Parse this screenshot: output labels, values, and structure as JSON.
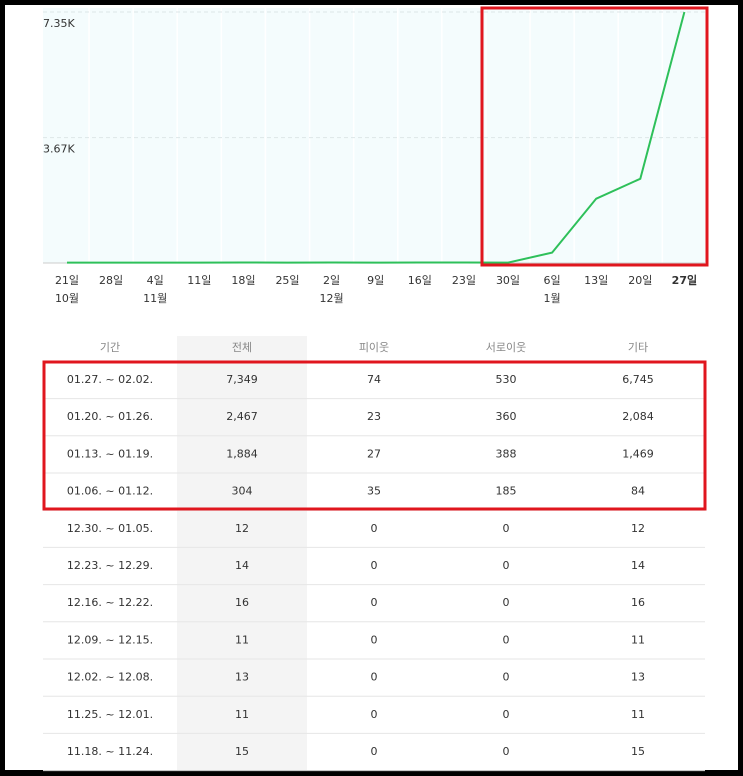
{
  "chart_data": {
    "type": "line",
    "categories": [
      "21일",
      "28일",
      "4일",
      "11일",
      "18일",
      "25일",
      "2일",
      "9일",
      "16일",
      "23일",
      "30일",
      "6일",
      "13일",
      "20일",
      "27일"
    ],
    "months": [
      "10월",
      null,
      "11월",
      null,
      null,
      null,
      "12월",
      null,
      null,
      null,
      null,
      "1월",
      null,
      null,
      null
    ],
    "series": [
      {
        "color": "#2ec05a",
        "values": [
          12,
          12,
          12,
          12,
          15,
          11,
          13,
          11,
          16,
          14,
          12,
          304,
          1884,
          2467,
          7349
        ]
      }
    ],
    "ylim": [
      0,
      7350
    ],
    "yticks": [
      {
        "value": 3670,
        "label": "3.67K"
      },
      {
        "value": 7350,
        "label": "7.35K"
      }
    ],
    "grid": true
  },
  "table": {
    "header": [
      "기간",
      "전체",
      "피이웃",
      "서로이웃",
      "기타"
    ],
    "rows": [
      [
        "01.27. ~ 02.02.",
        "7,349",
        "74",
        "530",
        "6,745"
      ],
      [
        "01.20. ~ 01.26.",
        "2,467",
        "23",
        "360",
        "2,084"
      ],
      [
        "01.13. ~ 01.19.",
        "1,884",
        "27",
        "388",
        "1,469"
      ],
      [
        "01.06. ~ 01.12.",
        "304",
        "35",
        "185",
        "84"
      ],
      [
        "12.30. ~ 01.05.",
        "12",
        "0",
        "0",
        "12"
      ],
      [
        "12.23. ~ 12.29.",
        "14",
        "0",
        "0",
        "14"
      ],
      [
        "12.16. ~ 12.22.",
        "16",
        "0",
        "0",
        "16"
      ],
      [
        "12.09. ~ 12.15.",
        "11",
        "0",
        "0",
        "11"
      ],
      [
        "12.02. ~ 12.08.",
        "13",
        "0",
        "0",
        "13"
      ],
      [
        "11.25. ~ 12.01.",
        "11",
        "0",
        "0",
        "11"
      ],
      [
        "11.18. ~ 11.24.",
        "15",
        "0",
        "0",
        "15"
      ]
    ]
  }
}
